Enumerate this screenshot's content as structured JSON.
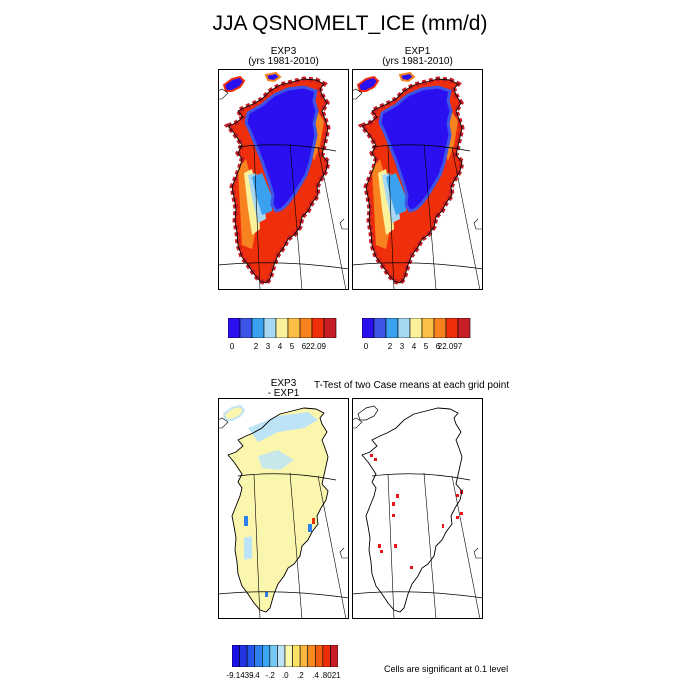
{
  "figure": {
    "title": "JJA QSNOMELT_ICE (mm/d)"
  },
  "panels": {
    "top_left": {
      "line1": "EXP3",
      "line2": "(yrs 1981-2010)"
    },
    "top_right": {
      "line1": "EXP1",
      "line2": "(yrs 1981-2010)"
    },
    "bottom_left": {
      "line1": "EXP3",
      "line2": "- EXP1"
    },
    "bottom_right": {
      "label": "T-Test of two Case means at each grid point"
    }
  },
  "colorbar_main": {
    "colors": [
      "#2a0ff0",
      "#3d55e6",
      "#3aa0f0",
      "#a6d8f3",
      "#fbf19a",
      "#fcbf46",
      "#f7821f",
      "#ef2f0c",
      "#c81e28"
    ],
    "left_ticks": [
      "0",
      "",
      "2",
      "3",
      "4",
      "5",
      "6",
      "22.09"
    ],
    "right_ticks": [
      "0",
      "",
      "2",
      "3",
      "4",
      "5",
      "6",
      "22.097"
    ]
  },
  "colorbar_diff": {
    "colors": [
      "#1a10e6",
      "#2233e0",
      "#2556ea",
      "#2e7ff0",
      "#3aa5f2",
      "#79c7f4",
      "#bde4f6",
      "#fbf6ad",
      "#fce06a",
      "#fcb743",
      "#f88a22",
      "#f25b10",
      "#ec2d0a",
      "#c81e28"
    ],
    "ticks": [
      "-9.1439",
      "-.4",
      "-.2",
      ".0",
      ".2",
      ".4",
      ".8021"
    ]
  },
  "significance": {
    "note": "Cells are significant at 0.1 level",
    "marker_color": "#e8141c"
  },
  "map_colors": {
    "interior": "#2a0ff0",
    "interior_edge": "#3d55e6",
    "mid": "#3aa0f0",
    "light": "#a6d8f3",
    "yellow": "#fbf19a",
    "orange": "#f7821f",
    "red": "#ef2f0c",
    "dark_red": "#c81e28",
    "diff_base": "#fbf6ad",
    "diff_light_blue": "#bde4f6",
    "diff_blue": "#2e7ff0",
    "diff_red": "#ec2d0a"
  }
}
